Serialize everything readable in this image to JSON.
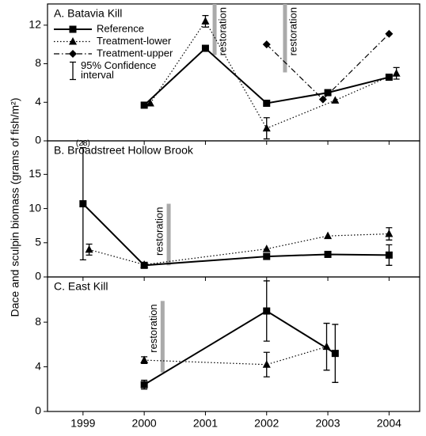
{
  "ylabel": "Dace and sculpin biomass (grams of fish/m²)",
  "chart_data": [
    {
      "type": "line",
      "title": "A. Batavia Kill",
      "xlim": [
        1998.42,
        2004.5
      ],
      "xticks": [
        1999,
        2000,
        2001,
        2002,
        2003,
        2004
      ],
      "ylim": [
        0,
        14.2
      ],
      "yticks": [
        0,
        4,
        8,
        12
      ],
      "series": [
        {
          "name": "Reference",
          "color": "#000000",
          "dash": "solid",
          "marker": "square",
          "x": [
            2000,
            2001,
            2002,
            2003,
            2004
          ],
          "values": [
            3.7,
            9.6,
            3.9,
            5.0,
            6.6
          ],
          "errors": [
            null,
            null,
            null,
            null,
            null
          ]
        },
        {
          "name": "Treatment-lower",
          "color": "#000000",
          "dash": "dotted",
          "marker": "triangle",
          "x": [
            2000.1,
            2001,
            2002,
            2003.12,
            2004.12
          ],
          "values": [
            3.9,
            12.4,
            1.3,
            4.2,
            7.0
          ],
          "errors": [
            null,
            0.6,
            1.1,
            null,
            0.6
          ]
        },
        {
          "name": "Treatment-upper",
          "color": "#000000",
          "dash": "dashdot",
          "marker": "diamond",
          "x": [
            2002,
            2002.92,
            2004
          ],
          "values": [
            10.0,
            4.3,
            11.1
          ],
          "errors": [
            null,
            null,
            null
          ]
        }
      ],
      "ci_label": [
        "95% Confidence",
        "interval"
      ],
      "markers": [
        {
          "label": "restoration",
          "x": 2001.15,
          "ymin": 8.9,
          "ymax": 14.2
        },
        {
          "label": "restoration",
          "x": 2002.3,
          "ymin": 7.1,
          "ymax": 14.2
        }
      ]
    },
    {
      "type": "line",
      "title": "B. Broadstreet Hollow Brook",
      "xlim": [
        1998.42,
        2004.5
      ],
      "xticks": [
        1999,
        2000,
        2001,
        2002,
        2003,
        2004
      ],
      "ylim": [
        0,
        19.9
      ],
      "yticks": [
        0,
        5,
        10,
        15
      ],
      "series": [
        {
          "name": "Reference",
          "color": "#000000",
          "dash": "solid",
          "marker": "square",
          "x": [
            1999,
            2000,
            2002,
            2003,
            2004
          ],
          "values": [
            10.7,
            1.7,
            3.0,
            3.3,
            3.2
          ],
          "errors": [
            8.2,
            null,
            null,
            null,
            1.5
          ]
        },
        {
          "name": "Treatment-lower",
          "color": "#000000",
          "dash": "dotted",
          "marker": "triangle",
          "x": [
            1999.1,
            2000,
            2002,
            2003,
            2004
          ],
          "values": [
            4.0,
            1.8,
            4.1,
            6.0,
            6.3
          ],
          "errors": [
            0.8,
            null,
            null,
            null,
            0.9
          ]
        }
      ],
      "annotations": [
        {
          "text": "(28)",
          "x": 1999,
          "y": 19.5
        }
      ],
      "markers": [
        {
          "label": "restoration",
          "x": 2000.4,
          "ymin": 1.7,
          "ymax": 10.7
        }
      ]
    },
    {
      "type": "line",
      "title": "C. East Kill",
      "xlim": [
        1998.42,
        2004.5
      ],
      "xticks": [
        1999,
        2000,
        2001,
        2002,
        2003,
        2004
      ],
      "ylim": [
        0,
        12.05
      ],
      "yticks": [
        0,
        4,
        8
      ],
      "series": [
        {
          "name": "Reference",
          "color": "#000000",
          "dash": "solid",
          "marker": "square",
          "x": [
            2000,
            2002,
            2003.12
          ],
          "values": [
            2.4,
            9.0,
            5.2
          ],
          "errors": [
            0.4,
            2.7,
            2.6
          ]
        },
        {
          "name": "Treatment-lower",
          "color": "#000000",
          "dash": "dotted",
          "marker": "triangle",
          "x": [
            2000,
            2002,
            2002.98
          ],
          "values": [
            4.6,
            4.2,
            5.8
          ],
          "errors": [
            0.3,
            1.1,
            2.1
          ]
        }
      ],
      "markers": [
        {
          "label": "restoration",
          "x": 2000.3,
          "ymin": 3.5,
          "ymax": 9.9
        }
      ]
    }
  ]
}
